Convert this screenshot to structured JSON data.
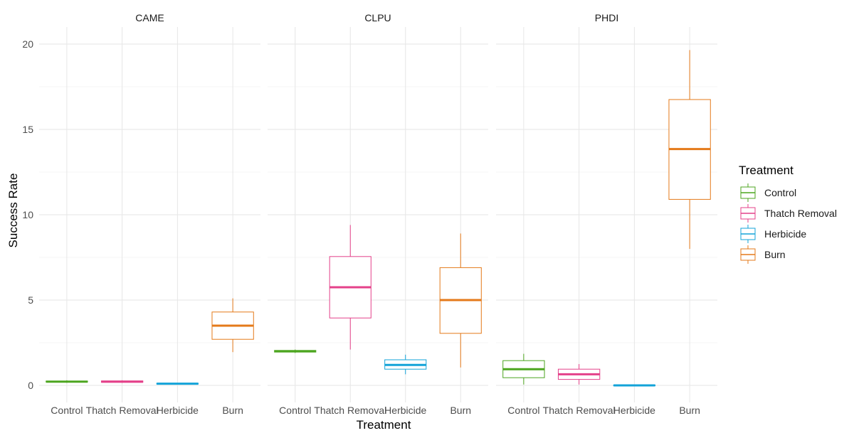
{
  "chart_data": {
    "type": "boxplot",
    "xlabel": "Treatment",
    "ylabel": "Success Rate",
    "ylim": [
      -1,
      21
    ],
    "yticks": [
      0,
      5,
      10,
      15,
      20
    ],
    "grid": true,
    "categories": [
      "Control",
      "Thatch Removal",
      "Herbicide",
      "Burn"
    ],
    "colors": {
      "Control": "#4ca51f",
      "Thatch Removal": "#e4418a",
      "Herbicide": "#13a3d8",
      "Burn": "#e47a1a"
    },
    "legend": {
      "title": "Treatment",
      "position": "right",
      "items": [
        "Control",
        "Thatch Removal",
        "Herbicide",
        "Burn"
      ]
    },
    "facets": [
      {
        "name": "CAME",
        "boxes": [
          {
            "category": "Control",
            "min": 0.15,
            "q1": 0.2,
            "median": 0.22,
            "q3": 0.25,
            "max": 0.3
          },
          {
            "category": "Thatch Removal",
            "min": 0.15,
            "q1": 0.18,
            "median": 0.22,
            "q3": 0.26,
            "max": 0.3
          },
          {
            "category": "Herbicide",
            "min": 0.08,
            "q1": 0.08,
            "median": 0.1,
            "q3": 0.12,
            "max": 0.12
          },
          {
            "category": "Burn",
            "min": 1.95,
            "q1": 2.7,
            "median": 3.5,
            "q3": 4.3,
            "max": 5.1
          }
        ]
      },
      {
        "name": "CLPU",
        "boxes": [
          {
            "category": "Control",
            "min": 1.9,
            "q1": 1.95,
            "median": 2.0,
            "q3": 2.05,
            "max": 2.1
          },
          {
            "category": "Thatch Removal",
            "min": 2.1,
            "q1": 3.95,
            "median": 5.75,
            "q3": 7.55,
            "max": 9.4
          },
          {
            "category": "Herbicide",
            "min": 0.65,
            "q1": 0.95,
            "median": 1.2,
            "q3": 1.5,
            "max": 1.8
          },
          {
            "category": "Burn",
            "min": 1.05,
            "q1": 3.05,
            "median": 5.0,
            "q3": 6.9,
            "max": 8.9
          }
        ]
      },
      {
        "name": "PHDI",
        "boxes": [
          {
            "category": "Control",
            "min": 0.05,
            "q1": 0.45,
            "median": 0.95,
            "q3": 1.45,
            "max": 1.85
          },
          {
            "category": "Thatch Removal",
            "min": 0.05,
            "q1": 0.35,
            "median": 0.65,
            "q3": 0.95,
            "max": 1.25
          },
          {
            "category": "Herbicide",
            "min": -0.02,
            "q1": -0.02,
            "median": 0.0,
            "q3": 0.02,
            "max": 0.02
          },
          {
            "category": "Burn",
            "min": 8.0,
            "q1": 10.9,
            "median": 13.85,
            "q3": 16.75,
            "max": 19.65
          }
        ]
      }
    ]
  }
}
